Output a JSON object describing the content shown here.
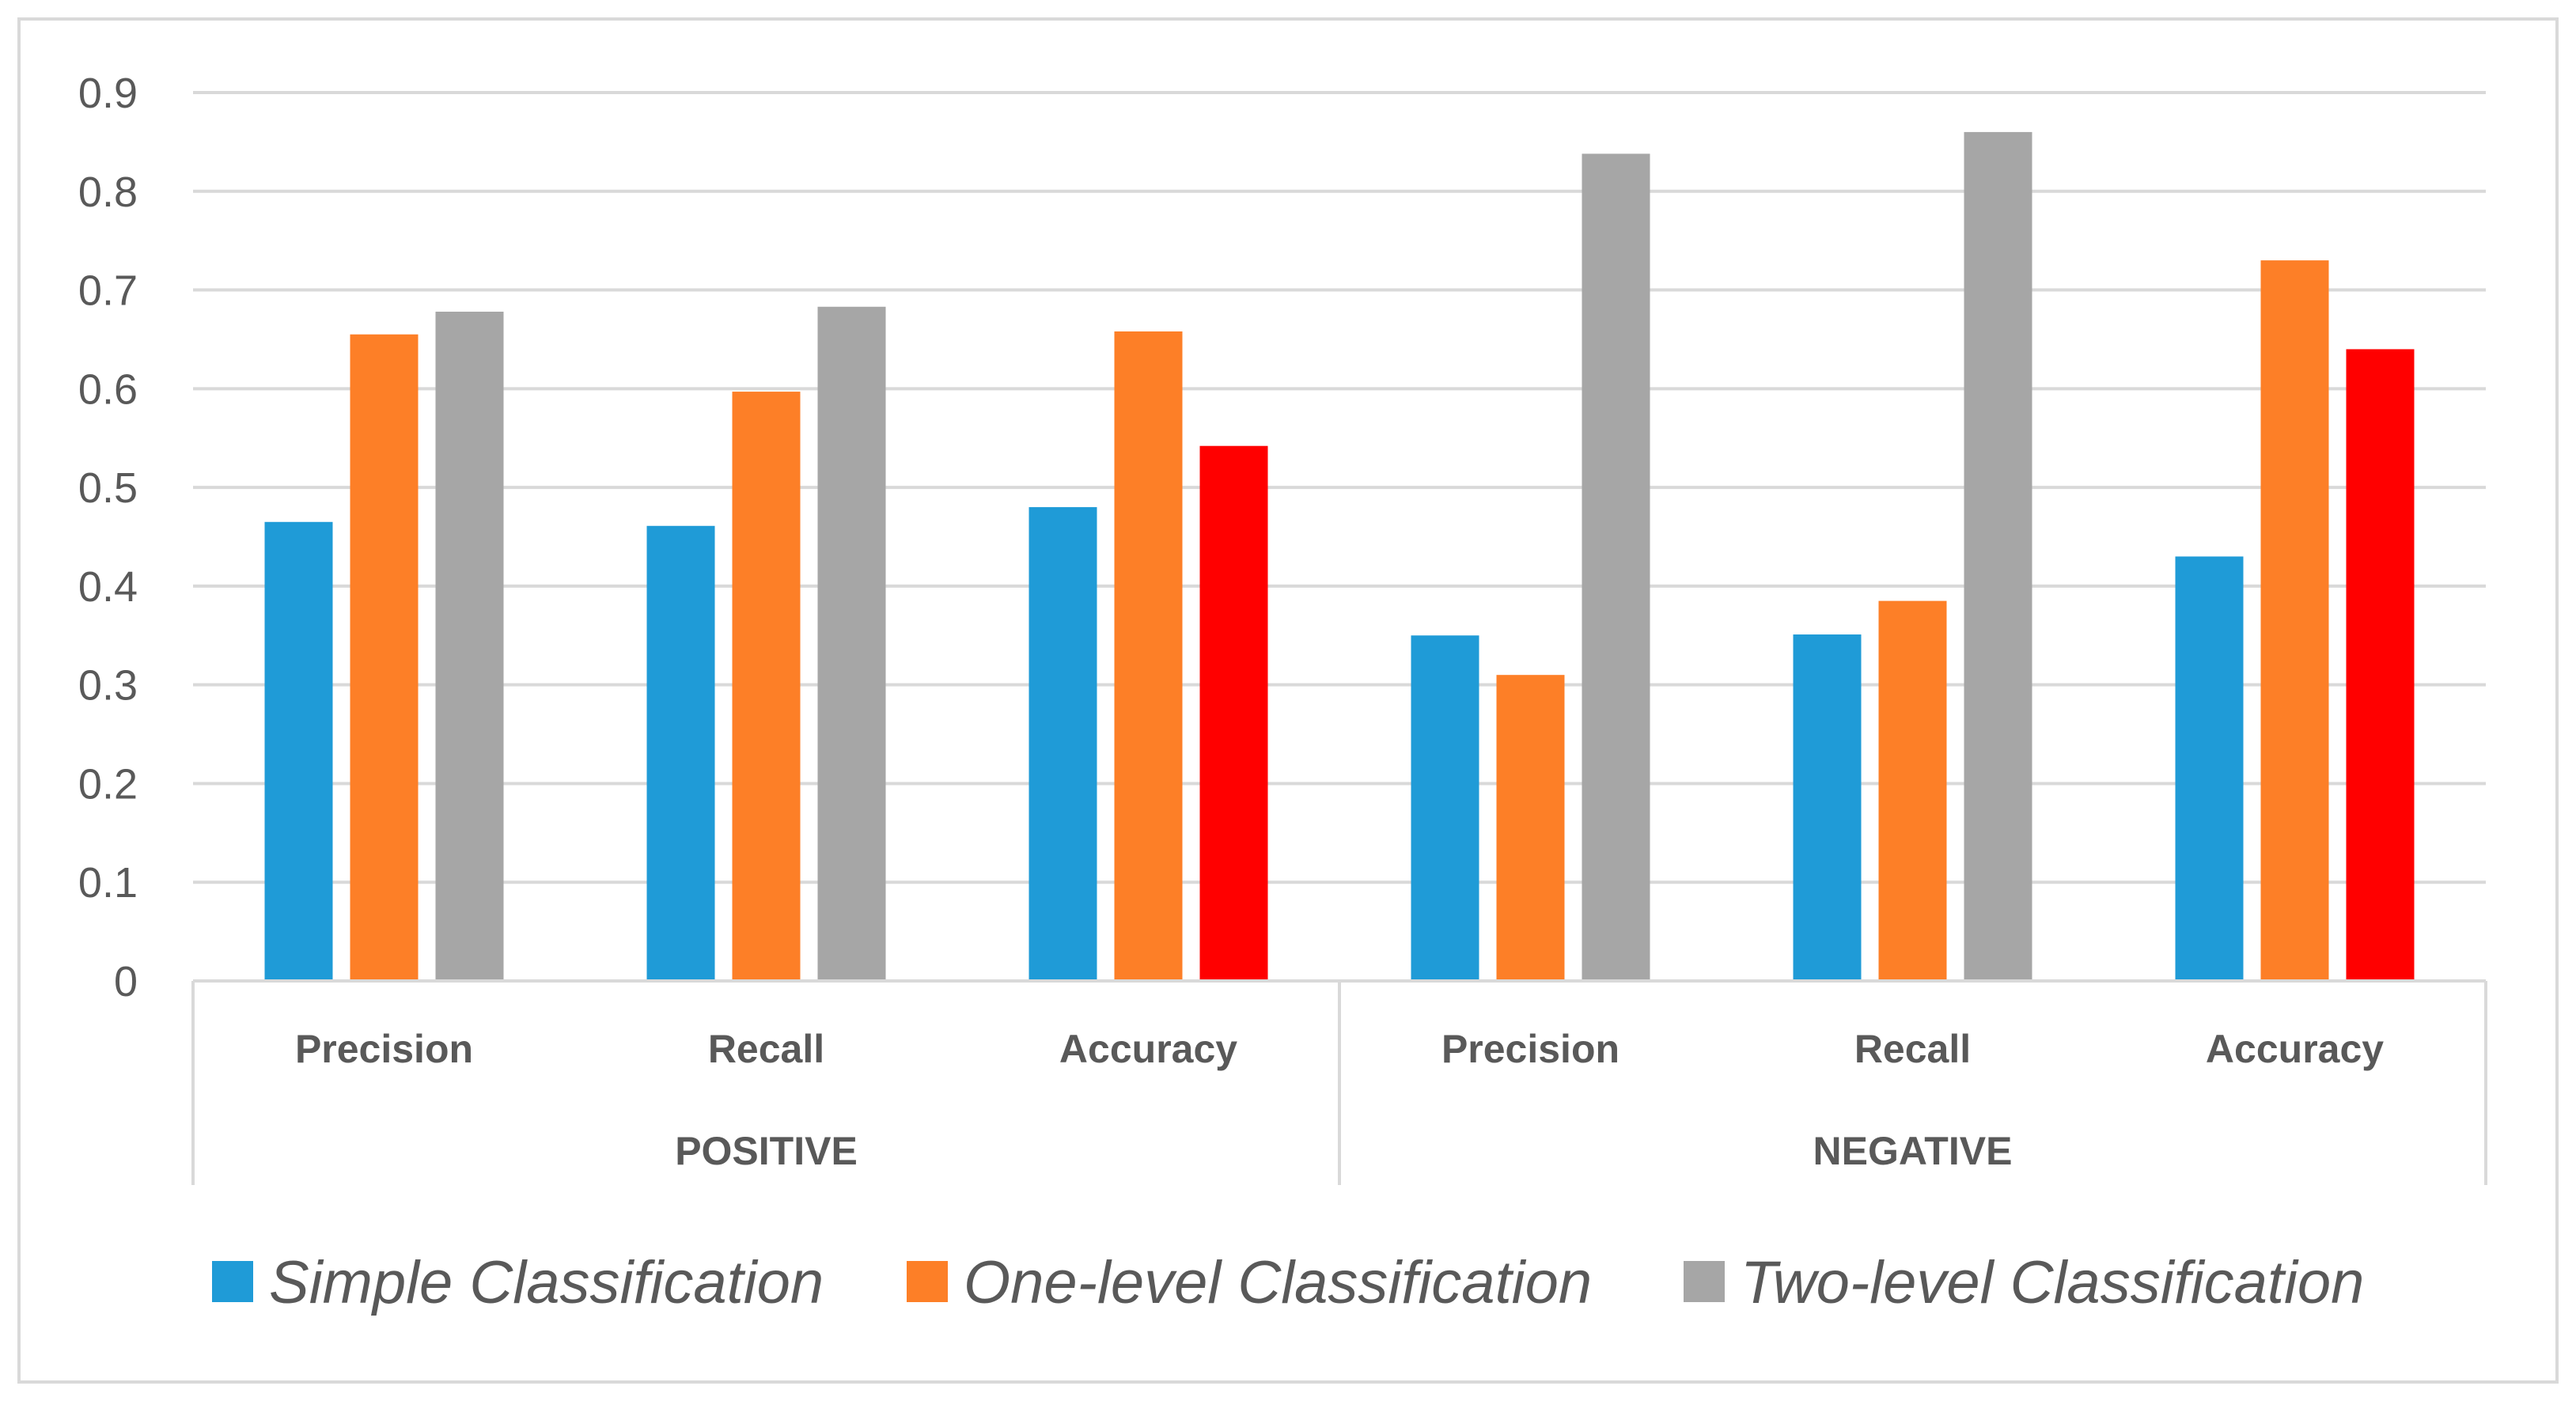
{
  "chart_data": {
    "type": "bar",
    "title": "",
    "xlabel": "",
    "ylabel": "",
    "ylim": [
      0,
      0.9
    ],
    "yticks": [
      "0",
      "0.1",
      "0.2",
      "0.3",
      "0.4",
      "0.5",
      "0.6",
      "0.7",
      "0.8",
      "0.9"
    ],
    "grid": true,
    "groups": [
      {
        "label": "POSITIVE",
        "categories": [
          "Precision",
          "Recall",
          "Accuracy"
        ]
      },
      {
        "label": "NEGATIVE",
        "categories": [
          "Precision",
          "Recall",
          "Accuracy"
        ]
      }
    ],
    "categories": [
      "Precision",
      "Recall",
      "Accuracy",
      "Precision",
      "Recall",
      "Accuracy"
    ],
    "series": [
      {
        "name": "Simple Classification",
        "color": "#1f9bd7",
        "values": [
          0.465,
          0.461,
          0.48,
          0.35,
          0.351,
          0.43
        ]
      },
      {
        "name": "One-level Classification",
        "color": "#fd7f27",
        "values": [
          0.655,
          0.597,
          0.658,
          0.31,
          0.385,
          0.73
        ]
      },
      {
        "name": "Two-level Classification",
        "color": "#a6a6a6",
        "values": [
          0.678,
          0.683,
          0.542,
          0.838,
          0.86,
          0.64
        ]
      }
    ],
    "highlight_color": "#ff0000",
    "highlighted_points": [
      {
        "series": 2,
        "index": 2
      },
      {
        "series": 2,
        "index": 5
      }
    ],
    "legend_position": "bottom"
  },
  "colors": {
    "grid": "#d9d9d9",
    "text": "#595959",
    "frame": "#d9d9d9"
  }
}
